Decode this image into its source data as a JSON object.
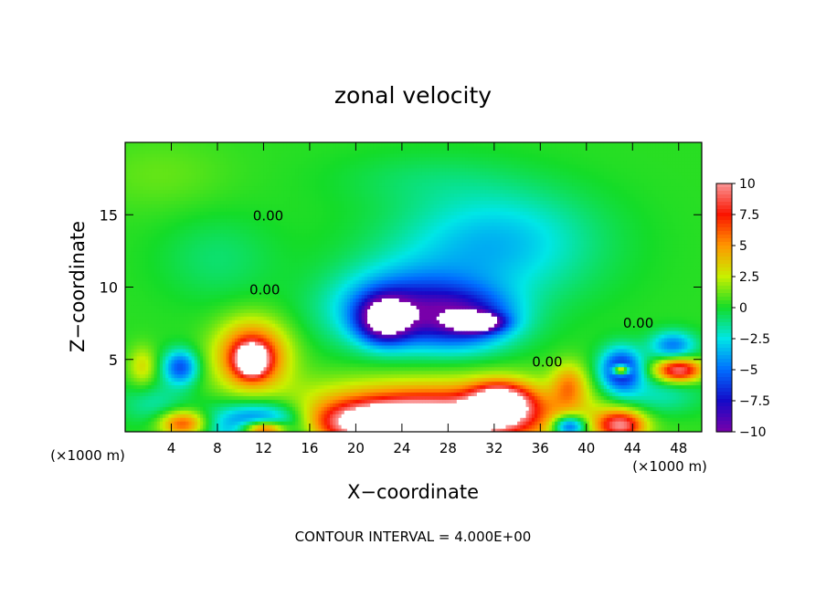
{
  "chart_data": {
    "type": "heatmap",
    "title": "zonal velocity",
    "xlabel": "X−coordinate",
    "ylabel": "Z−coordinate",
    "x_unit_left": "(×1000 m)",
    "x_unit_right": "(×1000 m)",
    "footer": "CONTOUR INTERVAL = 4.000E+00",
    "xlim": [
      0,
      50
    ],
    "ylim": [
      0,
      20
    ],
    "x_ticks": [
      4,
      8,
      12,
      16,
      20,
      24,
      28,
      32,
      36,
      40,
      44,
      48
    ],
    "y_ticks": [
      5,
      10,
      15
    ],
    "colorbar": {
      "range": [
        -10,
        10
      ],
      "tick_values": [
        10,
        7.5,
        5,
        2.5,
        0,
        -2.5,
        -5,
        -7.5,
        -10
      ],
      "tick_labels": [
        "10",
        "7.5",
        "5",
        "2.5",
        "0",
        "−2.5",
        "−5",
        "−7.5",
        "−10"
      ]
    },
    "contour_labels": [
      {
        "text": "0.00",
        "x": 12.4,
        "z": 14.6
      },
      {
        "text": "0.00",
        "x": 12.1,
        "z": 9.5
      },
      {
        "text": "0.00",
        "x": 36.6,
        "z": 4.5
      },
      {
        "text": "0.00",
        "x": 44.5,
        "z": 7.2
      }
    ],
    "background_value": 0.3,
    "features": [
      {
        "x": 3,
        "z": 17.8,
        "v": 0.8,
        "rx": 6,
        "rz": 2.5
      },
      {
        "x": 26,
        "z": 17.5,
        "v": -0.9,
        "rx": 8,
        "rz": 2
      },
      {
        "x": 31,
        "z": 12,
        "v": -3.0,
        "rx": 9,
        "rz": 3.5
      },
      {
        "x": 24,
        "z": 8.5,
        "v": -6.5,
        "rx": 6,
        "rz": 2.6
      },
      {
        "x": 22.5,
        "z": 7.8,
        "v": -9.5,
        "rx": 2.2,
        "rz": 1.5
      },
      {
        "x": 29.5,
        "z": 7.8,
        "v": -6.5,
        "rx": 4.5,
        "rz": 2
      },
      {
        "x": 30.5,
        "z": 7.6,
        "v": -11.0,
        "rx": 2,
        "rz": 0.6
      },
      {
        "x": 11,
        "z": 5.3,
        "v": 8.0,
        "rx": 3,
        "rz": 2.3
      },
      {
        "x": 11,
        "z": 5.0,
        "v": 10.5,
        "rx": 1.3,
        "rz": 1.0
      },
      {
        "x": 4.8,
        "z": 4.5,
        "v": -6.0,
        "rx": 1.5,
        "rz": 1.2
      },
      {
        "x": 1.5,
        "z": 4.5,
        "v": 2.8,
        "rx": 1.2,
        "rz": 1.4
      },
      {
        "x": 12,
        "z": 0.5,
        "v": -8.5,
        "rx": 4.5,
        "rz": 1.6
      },
      {
        "x": 12,
        "z": 0.2,
        "v": 11.0,
        "rx": 2,
        "rz": 0.6
      },
      {
        "x": 27,
        "z": 1.2,
        "v": 8.5,
        "rx": 12,
        "rz": 2.2
      },
      {
        "x": 24,
        "z": 0.6,
        "v": 11.5,
        "rx": 7,
        "rz": 1.3
      },
      {
        "x": 32.5,
        "z": 2.0,
        "v": 11.0,
        "rx": 2.5,
        "rz": 1.3
      },
      {
        "x": 5,
        "z": 0.6,
        "v": 6.5,
        "rx": 2,
        "rz": 0.9
      },
      {
        "x": 38.5,
        "z": 3.3,
        "v": 4.0,
        "rx": 1.5,
        "rz": 1.5
      },
      {
        "x": 38.5,
        "z": 0.4,
        "v": -8.0,
        "rx": 1.5,
        "rz": 0.8
      },
      {
        "x": 43,
        "z": 4.3,
        "v": -8.0,
        "rx": 1.8,
        "rz": 1.5
      },
      {
        "x": 43,
        "z": 4.3,
        "v": 11.0,
        "rx": 0.7,
        "rz": 0.35
      },
      {
        "x": 43,
        "z": 0.5,
        "v": 8.5,
        "rx": 2,
        "rz": 1
      },
      {
        "x": 48,
        "z": 4.3,
        "v": 9.5,
        "rx": 2,
        "rz": 0.8
      },
      {
        "x": 47.5,
        "z": 6,
        "v": -5.0,
        "rx": 2,
        "rz": 1
      },
      {
        "x": 33,
        "z": 14.5,
        "v": -1.5,
        "rx": 8,
        "rz": 3
      },
      {
        "x": 8,
        "z": 12,
        "v": -1.2,
        "rx": 5,
        "rz": 3
      },
      {
        "x": 2.5,
        "z": 2,
        "v": -2.0,
        "rx": 3,
        "rz": 1.5
      },
      {
        "x": 46,
        "z": 2.5,
        "v": -2.5,
        "rx": 4,
        "rz": 1.5
      }
    ]
  }
}
